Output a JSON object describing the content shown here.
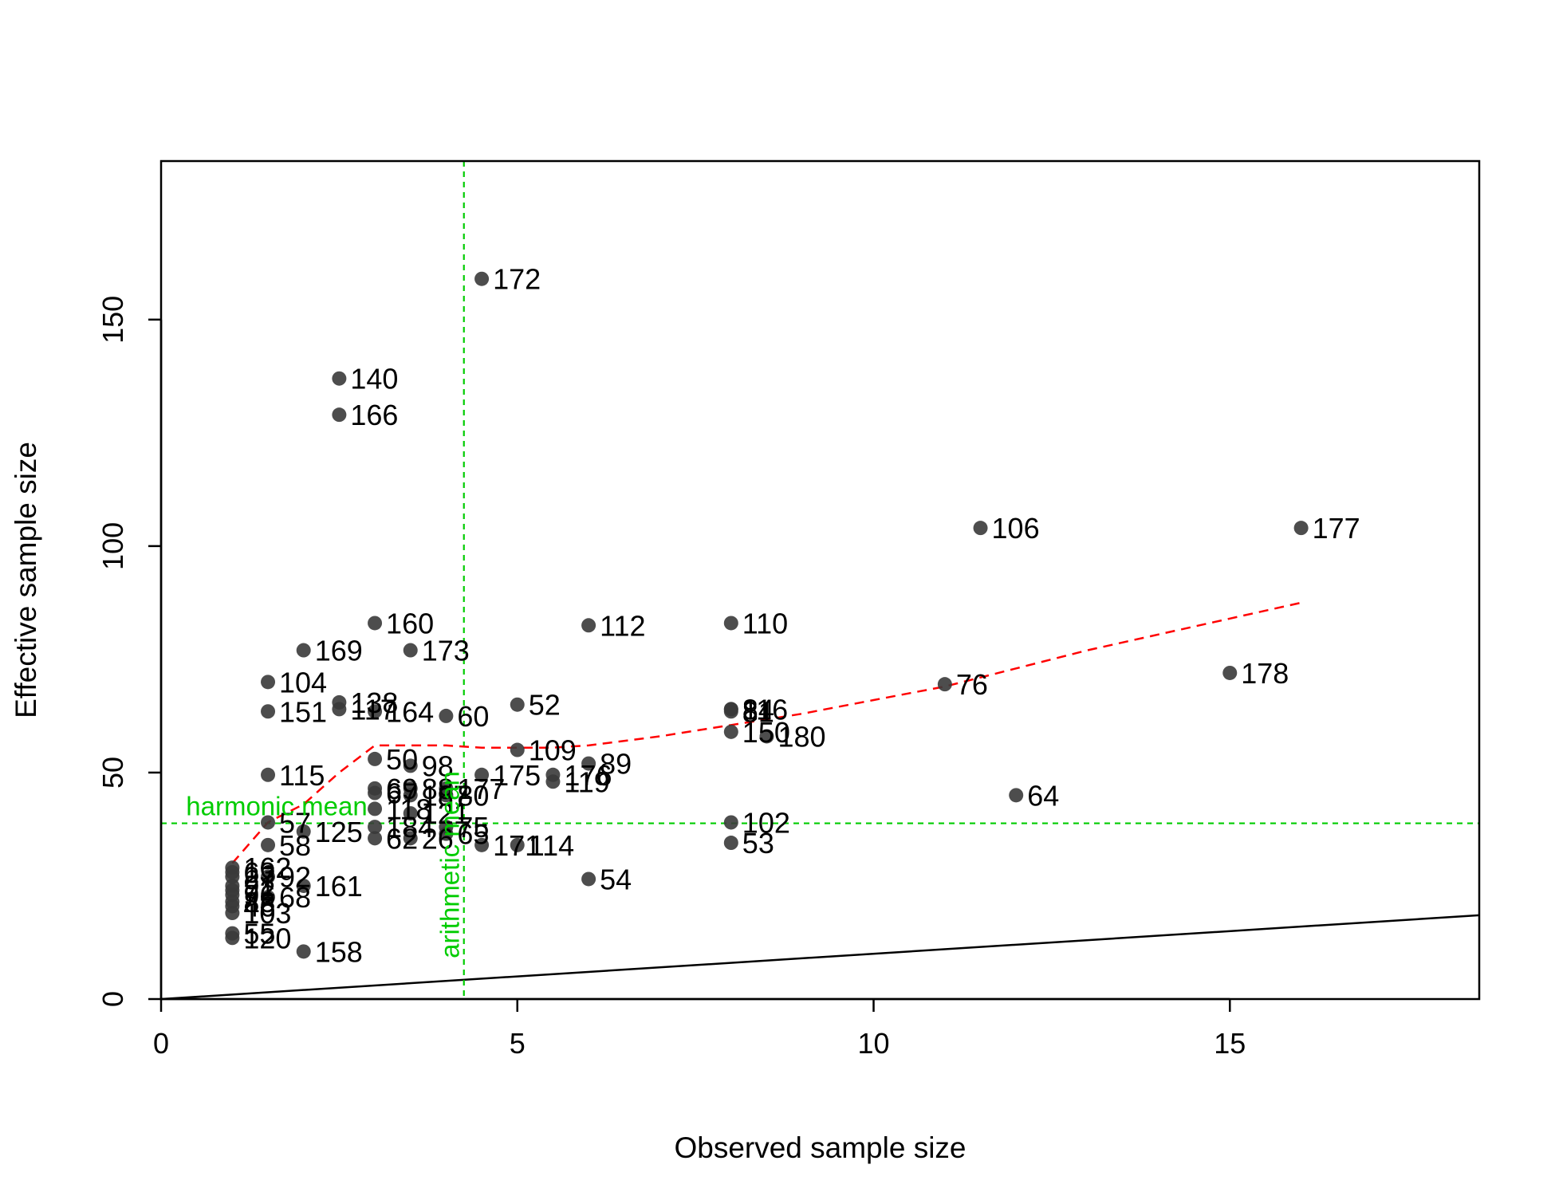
{
  "chart_data": {
    "type": "scatter",
    "title": "",
    "xlabel": "Observed sample size",
    "ylabel": "Effective sample size",
    "xlim": [
      0,
      18.5
    ],
    "ylim": [
      0,
      185
    ],
    "x_ticks": [
      0,
      5,
      10,
      15
    ],
    "y_ticks": [
      0,
      50,
      100,
      150
    ],
    "x_tick_labels": [
      "0",
      "5",
      "10",
      "15"
    ],
    "y_tick_labels": [
      "0",
      "50",
      "100",
      "150"
    ],
    "grid": false,
    "legend": "none",
    "colors": {
      "points": "#3a3a3a",
      "smooth_line": "#ff0000",
      "reference_lines": "#00cc00",
      "identity_line": "#000000"
    },
    "points": [
      {
        "label": "172",
        "x": 4.5,
        "y": 159
      },
      {
        "label": "140",
        "x": 2.5,
        "y": 137
      },
      {
        "label": "166",
        "x": 2.5,
        "y": 129
      },
      {
        "label": "106",
        "x": 11.5,
        "y": 104
      },
      {
        "label": "177",
        "x": 16.0,
        "y": 104
      },
      {
        "label": "160",
        "x": 3.0,
        "y": 83
      },
      {
        "label": "112",
        "x": 6.0,
        "y": 82.5
      },
      {
        "label": "110",
        "x": 8.0,
        "y": 83
      },
      {
        "label": "169",
        "x": 2.0,
        "y": 77
      },
      {
        "label": "173",
        "x": 3.5,
        "y": 77
      },
      {
        "label": "104",
        "x": 1.5,
        "y": 70
      },
      {
        "label": "76",
        "x": 11.0,
        "y": 69.5
      },
      {
        "label": "178",
        "x": 15.0,
        "y": 72
      },
      {
        "label": "138",
        "x": 2.5,
        "y": 65.5
      },
      {
        "label": "52",
        "x": 5.0,
        "y": 65
      },
      {
        "label": "151",
        "x": 1.5,
        "y": 63.5
      },
      {
        "label": "117",
        "x": 2.5,
        "y": 64
      },
      {
        "label": "164",
        "x": 3.0,
        "y": 63.5
      },
      {
        "label": "60",
        "x": 4.0,
        "y": 62.5
      },
      {
        "label": "84",
        "x": 8.0,
        "y": 64
      },
      {
        "label": "116",
        "x": 8.0,
        "y": 64
      },
      {
        "label": "81",
        "x": 8.0,
        "y": 63.5
      },
      {
        "label": "150",
        "x": 8.0,
        "y": 59
      },
      {
        "label": "180",
        "x": 8.5,
        "y": 58
      },
      {
        "label": "109",
        "x": 5.0,
        "y": 55
      },
      {
        "label": "50",
        "x": 3.0,
        "y": 53
      },
      {
        "label": "98",
        "x": 3.5,
        "y": 51.5
      },
      {
        "label": "89",
        "x": 6.0,
        "y": 52
      },
      {
        "label": "115",
        "x": 1.5,
        "y": 49.5
      },
      {
        "label": "175",
        "x": 4.5,
        "y": 49.5
      },
      {
        "label": "176",
        "x": 5.5,
        "y": 49.5
      },
      {
        "label": "119",
        "x": 5.5,
        "y": 48
      },
      {
        "label": "69",
        "x": 3.0,
        "y": 46.5
      },
      {
        "label": "67",
        "x": 3.0,
        "y": 45.5
      },
      {
        "label": "88",
        "x": 3.5,
        "y": 46.5
      },
      {
        "label": "177",
        "x": 4.0,
        "y": 46.5
      },
      {
        "label": "187",
        "x": 3.5,
        "y": 45
      },
      {
        "label": "80",
        "x": 4.0,
        "y": 45
      },
      {
        "label": "64",
        "x": 12.0,
        "y": 45
      },
      {
        "label": "118",
        "x": 3.0,
        "y": 42
      },
      {
        "label": "121",
        "x": 3.5,
        "y": 41
      },
      {
        "label": "102",
        "x": 8.0,
        "y": 39
      },
      {
        "label": "57",
        "x": 1.5,
        "y": 39
      },
      {
        "label": "125",
        "x": 2.0,
        "y": 37
      },
      {
        "label": "184",
        "x": 3.0,
        "y": 38
      },
      {
        "label": "75",
        "x": 4.0,
        "y": 38
      },
      {
        "label": "65",
        "x": 4.0,
        "y": 36.5
      },
      {
        "label": "62",
        "x": 3.0,
        "y": 35.5
      },
      {
        "label": "26",
        "x": 3.5,
        "y": 35.5
      },
      {
        "label": "58",
        "x": 1.5,
        "y": 34
      },
      {
        "label": "53",
        "x": 8.0,
        "y": 34.5
      },
      {
        "label": "171",
        "x": 4.5,
        "y": 34
      },
      {
        "label": "114",
        "x": 5.0,
        "y": 34
      },
      {
        "label": "162",
        "x": 1.0,
        "y": 29
      },
      {
        "label": "63",
        "x": 1.0,
        "y": 28
      },
      {
        "label": "27",
        "x": 1.0,
        "y": 27
      },
      {
        "label": "92",
        "x": 1.5,
        "y": 27
      },
      {
        "label": "54",
        "x": 6.0,
        "y": 26.5
      },
      {
        "label": "161",
        "x": 2.0,
        "y": 25
      },
      {
        "label": "91",
        "x": 1.0,
        "y": 25
      },
      {
        "label": "72",
        "x": 1.0,
        "y": 24
      },
      {
        "label": "96",
        "x": 1.0,
        "y": 23
      },
      {
        "label": "68",
        "x": 1.5,
        "y": 22.5
      },
      {
        "label": "83",
        "x": 1.0,
        "y": 21.5
      },
      {
        "label": "46",
        "x": 1.0,
        "y": 20.5
      },
      {
        "label": "103",
        "x": 1.0,
        "y": 19
      },
      {
        "label": "55",
        "x": 1.0,
        "y": 14.5
      },
      {
        "label": "120",
        "x": 1.0,
        "y": 13.5
      },
      {
        "label": "158",
        "x": 2.0,
        "y": 10.5
      }
    ],
    "smooth_line": {
      "x": [
        1.0,
        1.5,
        2.0,
        2.5,
        3.0,
        3.5,
        4.0,
        4.5,
        5.0,
        5.5,
        6.0,
        7.0,
        8.0,
        9.0,
        10.0,
        11.0,
        12.0,
        13.0,
        14.0,
        15.0,
        16.0
      ],
      "y": [
        30,
        39,
        43,
        50,
        56,
        56,
        56,
        55.5,
        55.5,
        55.5,
        56,
        58,
        60.5,
        63,
        66,
        69,
        73,
        77,
        80.5,
        84,
        87.5
      ]
    },
    "identity_line": {
      "x": [
        0,
        18.5
      ],
      "y": [
        0,
        18.5
      ]
    },
    "reference_lines": {
      "harmonic_mean": {
        "y": 38.8,
        "label": "harmonic mean"
      },
      "arithmetic_mean": {
        "x": 4.25,
        "label": "arithmetic mean"
      }
    }
  }
}
